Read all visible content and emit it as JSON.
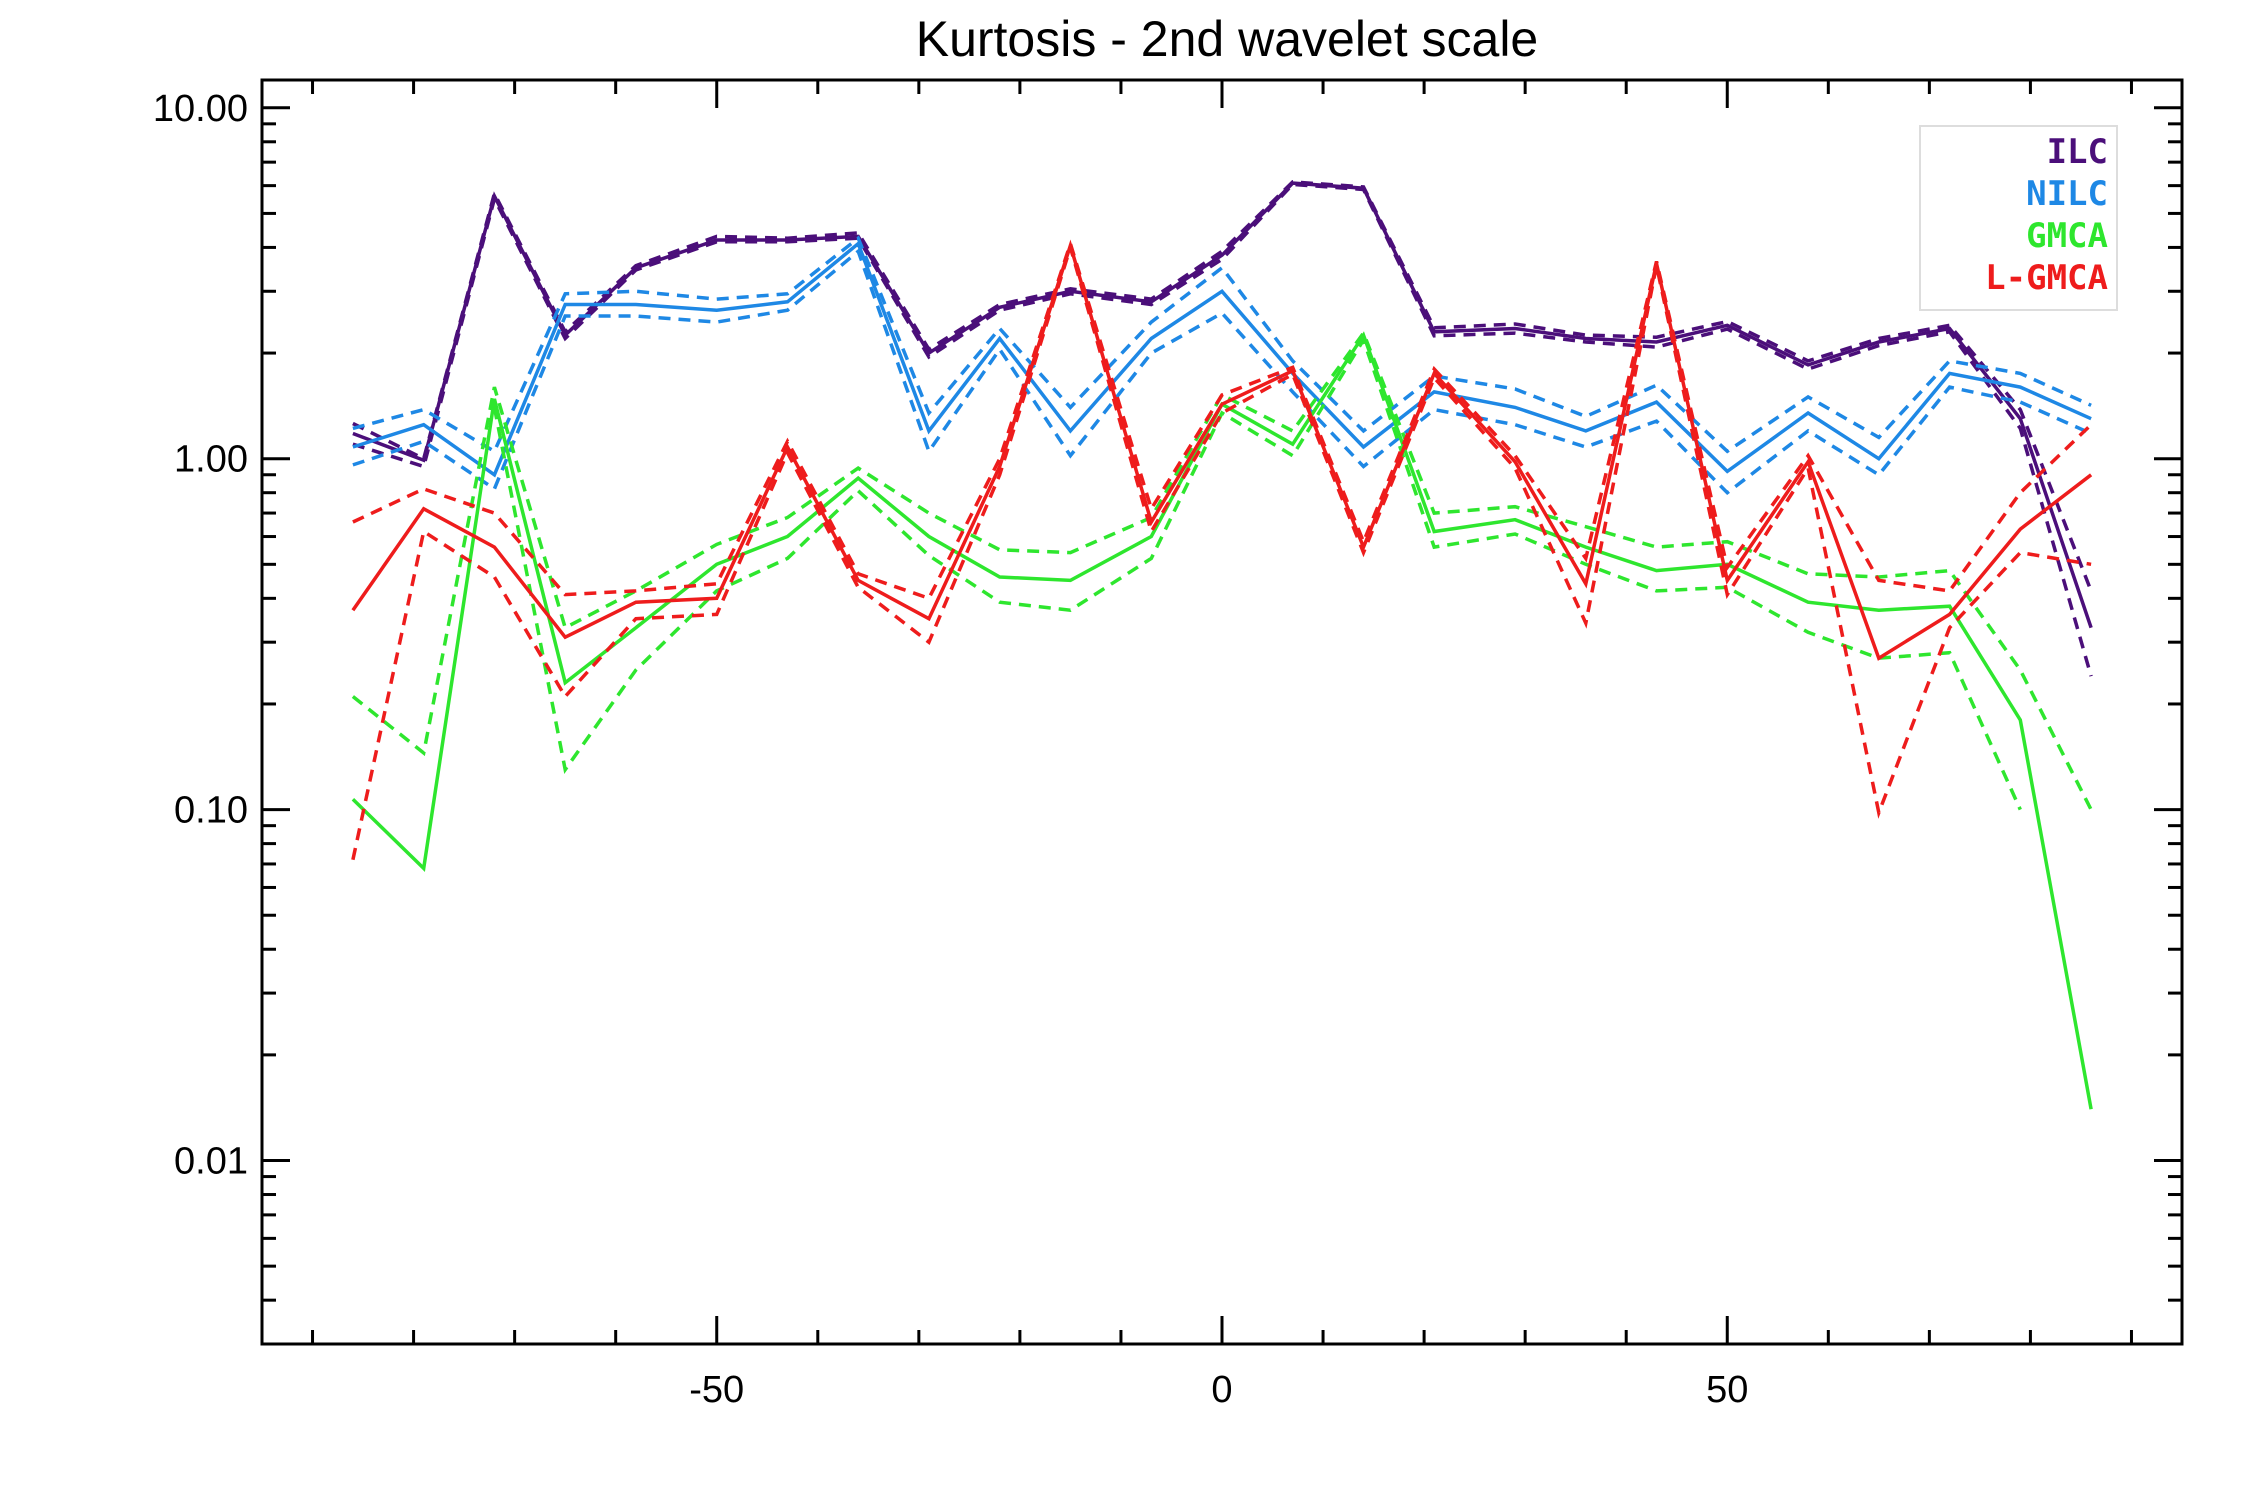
{
  "chart_data": {
    "type": "line",
    "title": "Kurtosis - 2nd wavelet scale",
    "xlabel": "",
    "ylabel": "",
    "xlim": [
      -95,
      95
    ],
    "ylim": [
      0.003,
      12
    ],
    "yscale": "log",
    "grid": false,
    "legend_position": "top-right",
    "x_tick_labels": [
      "-50",
      "0",
      "50"
    ],
    "x_tick_values": [
      -50,
      0,
      50
    ],
    "y_tick_labels": [
      "10.00",
      "1.00",
      "0.10",
      "0.01"
    ],
    "y_tick_values": [
      10,
      1,
      0.1,
      0.01
    ],
    "x": [
      -86,
      -79,
      -72,
      -65,
      -58,
      -50,
      -43,
      -36,
      -29,
      -22,
      -15,
      -7,
      0,
      7,
      14,
      21,
      29,
      36,
      43,
      50,
      58,
      65,
      72,
      79,
      86
    ],
    "series": [
      {
        "name": "ILC",
        "color": "#4b0f7a",
        "values": [
          1.18,
          0.99,
          5.6,
          2.25,
          3.5,
          4.2,
          4.2,
          4.3,
          2.0,
          2.7,
          3.0,
          2.8,
          3.8,
          6.1,
          5.9,
          2.3,
          2.35,
          2.2,
          2.15,
          2.4,
          1.85,
          2.15,
          2.35,
          1.3,
          0.33
        ],
        "upper": [
          1.26,
          1.0,
          5.7,
          2.3,
          3.55,
          4.3,
          4.25,
          4.4,
          2.05,
          2.75,
          3.05,
          2.85,
          3.9,
          6.15,
          5.95,
          2.36,
          2.42,
          2.25,
          2.22,
          2.46,
          1.9,
          2.2,
          2.4,
          1.38,
          0.42
        ],
        "lower": [
          1.1,
          0.95,
          5.5,
          2.2,
          3.45,
          4.15,
          4.15,
          4.25,
          1.95,
          2.65,
          2.95,
          2.75,
          3.7,
          6.05,
          5.85,
          2.24,
          2.28,
          2.15,
          2.08,
          2.34,
          1.8,
          2.1,
          2.3,
          1.22,
          0.24
        ]
      },
      {
        "name": "NILC",
        "color": "#1e88e5",
        "values": [
          1.08,
          1.25,
          0.9,
          2.75,
          2.75,
          2.65,
          2.8,
          4.1,
          1.2,
          2.2,
          1.2,
          2.2,
          3.0,
          1.75,
          1.08,
          1.55,
          1.4,
          1.2,
          1.45,
          0.92,
          1.35,
          1.0,
          1.75,
          1.6,
          1.3
        ],
        "upper": [
          1.22,
          1.38,
          1.05,
          2.95,
          3.0,
          2.85,
          2.95,
          4.25,
          1.35,
          2.35,
          1.4,
          2.45,
          3.5,
          1.9,
          1.2,
          1.72,
          1.58,
          1.32,
          1.62,
          1.05,
          1.5,
          1.15,
          1.9,
          1.75,
          1.42
        ],
        "lower": [
          0.96,
          1.12,
          0.82,
          2.55,
          2.55,
          2.45,
          2.65,
          3.9,
          1.05,
          2.05,
          1.02,
          2.0,
          2.6,
          1.55,
          0.95,
          1.38,
          1.25,
          1.08,
          1.28,
          0.8,
          1.2,
          0.9,
          1.6,
          1.45,
          1.18
        ]
      },
      {
        "name": "GMCA",
        "color": "#2ee62e",
        "values": [
          0.107,
          0.068,
          1.48,
          0.23,
          0.33,
          0.5,
          0.6,
          0.88,
          0.6,
          0.46,
          0.45,
          0.6,
          1.43,
          1.1,
          2.25,
          0.62,
          0.67,
          0.56,
          0.48,
          0.5,
          0.39,
          0.37,
          0.38,
          0.18,
          0.014
        ],
        "upper": [
          0.21,
          0.145,
          1.6,
          0.33,
          0.42,
          0.57,
          0.68,
          0.94,
          0.7,
          0.55,
          0.54,
          0.68,
          1.52,
          1.2,
          2.28,
          0.7,
          0.73,
          0.64,
          0.56,
          0.58,
          0.47,
          0.46,
          0.48,
          0.25,
          0.1
        ],
        "lower": [
          0.0,
          0.0,
          1.4,
          0.13,
          0.25,
          0.42,
          0.52,
          0.81,
          0.53,
          0.39,
          0.37,
          0.52,
          1.35,
          1.02,
          2.18,
          0.56,
          0.61,
          0.5,
          0.42,
          0.43,
          0.32,
          0.27,
          0.28,
          0.1,
          0.0
        ],
        "lower_start": [
          -72,
          0.003
        ]
      },
      {
        "name": "L-GMCA",
        "color": "#ee1c1c",
        "values": [
          0.37,
          0.72,
          0.56,
          0.31,
          0.39,
          0.4,
          1.08,
          0.45,
          0.35,
          0.95,
          4.05,
          0.66,
          1.43,
          1.78,
          0.56,
          1.75,
          0.98,
          0.44,
          3.6,
          0.45,
          0.98,
          0.27,
          0.36,
          0.63,
          0.9
        ],
        "upper": [
          0.66,
          0.82,
          0.7,
          0.41,
          0.42,
          0.44,
          1.12,
          0.47,
          0.4,
          1.0,
          4.1,
          0.72,
          1.52,
          1.82,
          0.58,
          1.8,
          1.02,
          0.52,
          3.65,
          0.49,
          1.02,
          0.45,
          0.42,
          0.8,
          1.25
        ],
        "lower": [
          0.072,
          0.62,
          0.46,
          0.21,
          0.35,
          0.36,
          1.04,
          0.43,
          0.3,
          0.9,
          4.0,
          0.62,
          1.35,
          1.74,
          0.54,
          1.7,
          0.94,
          0.34,
          3.55,
          0.41,
          0.94,
          0.098,
          0.33,
          0.54,
          0.5
        ]
      }
    ]
  }
}
